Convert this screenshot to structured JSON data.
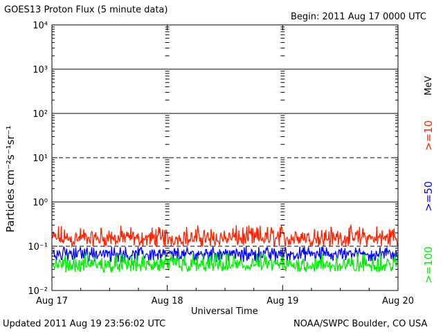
{
  "header": {
    "title": "GOES13 Proton Flux (5 minute data)",
    "begin": "Begin: 2011 Aug 17 0000 UTC"
  },
  "footer": {
    "updated": "Updated 2011 Aug 19 23:56:02 UTC",
    "source": "NOAA/SWPC Boulder, CO USA"
  },
  "chart_data": {
    "type": "line",
    "title": "GOES13 Proton Flux (5 minute data)",
    "xlabel": "Universal Time",
    "ylabel": "Particles cm⁻²s⁻¹sr⁻¹",
    "yscale": "log",
    "ylim": [
      0.01,
      10000
    ],
    "x_range": [
      "2011-08-17",
      "2011-08-20"
    ],
    "x_ticks": [
      "Aug 17",
      "Aug 18",
      "Aug 19",
      "Aug 20"
    ],
    "y_ticks": [
      "10⁻²",
      "10⁻¹",
      "10⁰",
      "10¹",
      "10²",
      "10³",
      "10⁴"
    ],
    "grid": true,
    "threshold_lines": [
      0.1,
      10
    ],
    "legend_unit": "MeV",
    "series": [
      {
        "name": ">=10",
        "color": "#ff2200",
        "typical_flux": 0.13,
        "range": [
          0.08,
          0.3
        ]
      },
      {
        "name": ">=50",
        "color": "#0000ff",
        "typical_flux": 0.06,
        "range": [
          0.035,
          0.1
        ]
      },
      {
        "name": ">=100",
        "color": "#00ee00",
        "typical_flux": 0.032,
        "range": [
          0.022,
          0.07
        ]
      }
    ]
  }
}
